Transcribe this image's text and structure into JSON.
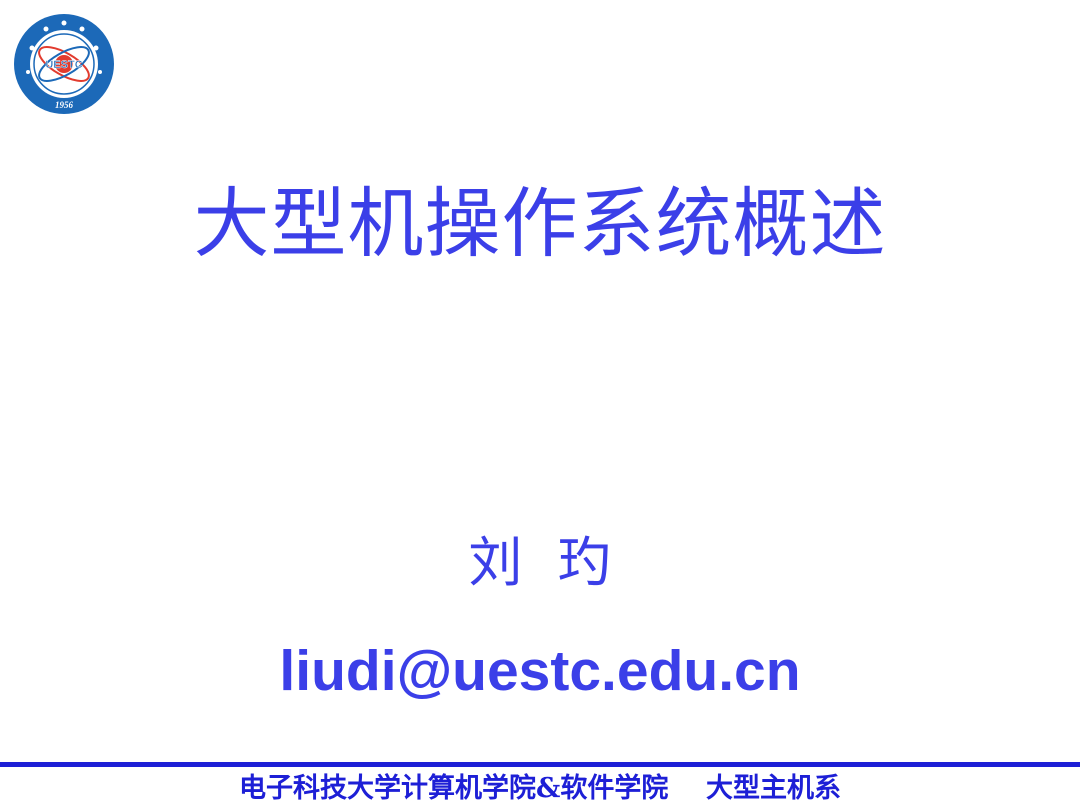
{
  "slide": {
    "logo": {
      "icon": "university-emblem-icon",
      "text": "UESTC",
      "year": "1956",
      "colors": {
        "ring": "#1c69b8",
        "inner": "#ffffff",
        "accent": "#e23b2e"
      }
    },
    "title": "大型机操作系统概述",
    "author": "刘  玓",
    "email": "liudi@uestc.edu.cn",
    "footer": "电子科技大学计算机学院&软件学院    大型主机系"
  },
  "colors": {
    "text_primary": "#3b3fe8",
    "footer": "#1d1fd6",
    "background": "#ffffff"
  }
}
